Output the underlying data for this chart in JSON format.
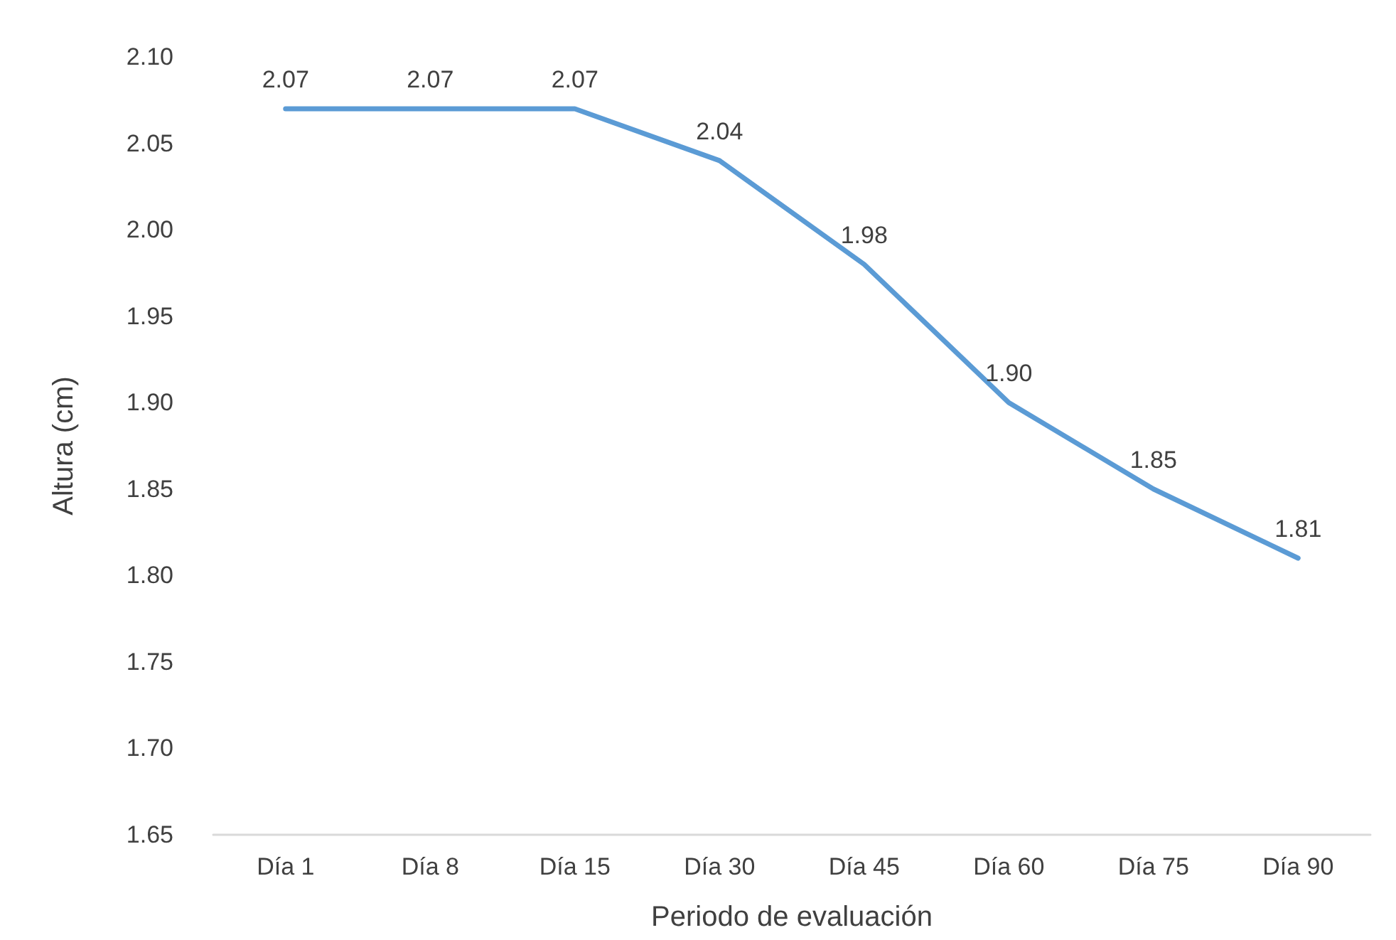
{
  "chart_data": {
    "type": "line",
    "xlabel": "Periodo de evaluación",
    "ylabel": "Altura (cm)",
    "categories": [
      "Día 1",
      "Día 8",
      "Día 15",
      "Día 30",
      "Día 45",
      "Día 60",
      "Día 75",
      "Día 90"
    ],
    "series": [
      {
        "color": "#5b9bd5",
        "values": [
          2.07,
          2.07,
          2.07,
          2.04,
          1.98,
          1.9,
          1.85,
          1.81
        ],
        "value_labels": [
          "2.07",
          "2.07",
          "2.07",
          "2.04",
          "1.98",
          "1.90",
          "1.85",
          "1.81"
        ]
      }
    ],
    "ylim": [
      1.65,
      2.1
    ],
    "yticks": [
      1.65,
      {
        "value": 1.7,
        "label": "1.70"
      },
      1.75,
      {
        "value": 1.8,
        "label": "1.80"
      },
      1.85,
      {
        "value": 1.9,
        "label": "1.90"
      },
      1.95,
      {
        "value": 2.0,
        "label": "2.00"
      },
      2.05,
      {
        "value": 2.1,
        "label": "2.10"
      }
    ],
    "grid": false,
    "marker": "none",
    "line_style": "solid"
  }
}
